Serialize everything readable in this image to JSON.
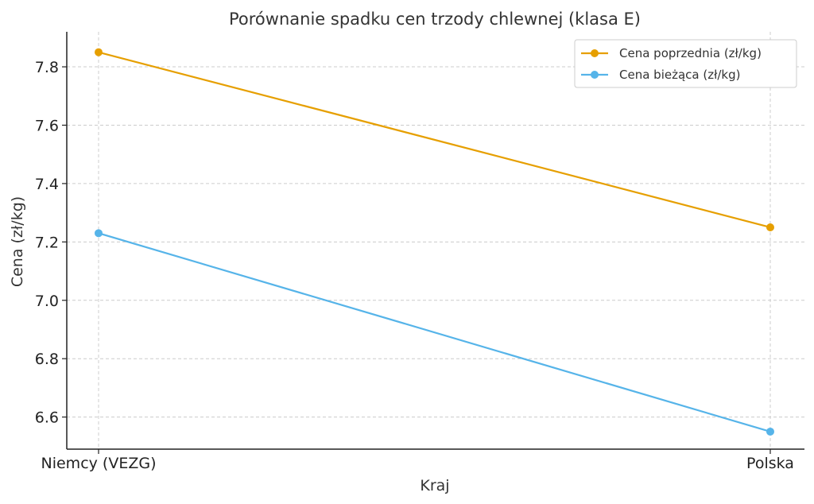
{
  "chart_data": {
    "type": "line",
    "title": "Porównanie spadku cen trzody chlewnej (klasa E)",
    "xlabel": "Kraj",
    "ylabel": "Cena (zł/kg)",
    "categories": [
      "Niemcy (VEZG)",
      "Polska"
    ],
    "series": [
      {
        "name": "Cena poprzednia (zł/kg)",
        "values": [
          7.85,
          7.25
        ],
        "color": "#E69F00"
      },
      {
        "name": "Cena bieżąca (zł/kg)",
        "values": [
          7.23,
          6.55
        ],
        "color": "#56B4E9"
      }
    ],
    "ylim": [
      6.49,
      7.92
    ],
    "yticks": [
      "6.6",
      "6.8",
      "7.0",
      "7.2",
      "7.4",
      "7.6",
      "7.8"
    ],
    "grid": true,
    "legend_position": "top-right"
  }
}
